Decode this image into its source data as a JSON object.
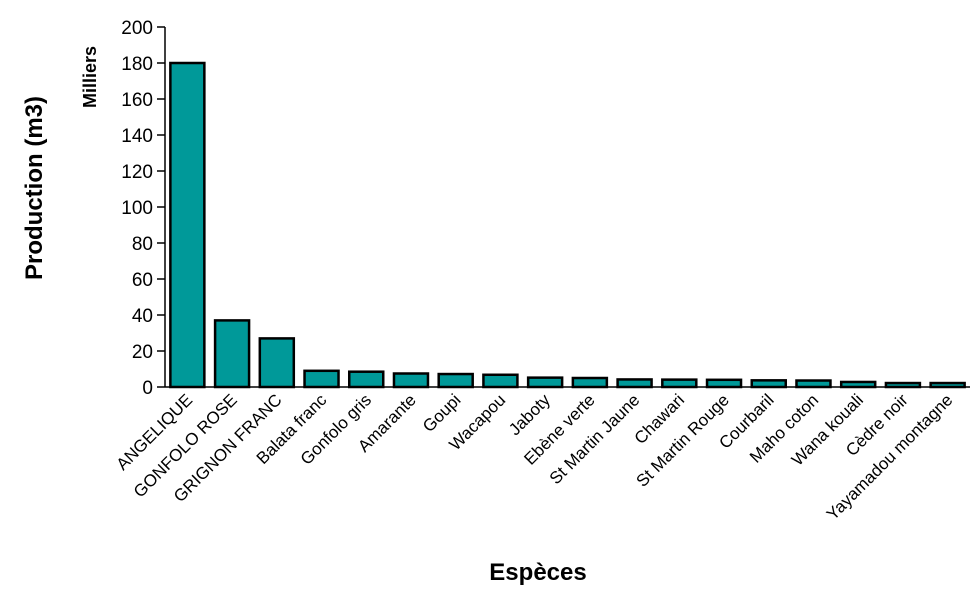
{
  "chart_data": {
    "type": "bar",
    "title": "",
    "xlabel": "Espèces",
    "ylabel": "Production (m3)",
    "units_label": "Milliers",
    "ylim": [
      0,
      200
    ],
    "yticks": [
      0,
      20,
      40,
      60,
      80,
      100,
      120,
      140,
      160,
      180,
      200
    ],
    "grid": false,
    "legend": "none",
    "bar_color": "#009999",
    "categories": [
      "ANGELIQUE",
      "GONFOLO ROSE",
      "GRIGNON FRANC",
      "Balata franc",
      "Gonfolo gris",
      "Amarante",
      "Goupi",
      "Wacapou",
      "Jaboty",
      "Ebène verte",
      "St Martin Jaune",
      "Chawari",
      "St Martin Rouge",
      "Courbaril",
      "Maho coton",
      "Wana kouali",
      "Cèdre noir",
      "Yayamadou montagne"
    ],
    "values": [
      180,
      37,
      27,
      9,
      8.5,
      7.5,
      7.2,
      6.8,
      5.2,
      5,
      4.2,
      4.1,
      4,
      3.7,
      3.6,
      2.8,
      2.2,
      2.2
    ]
  }
}
